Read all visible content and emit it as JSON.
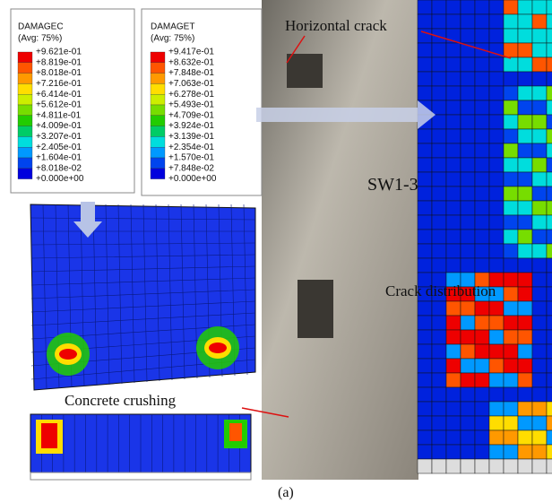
{
  "legend_c": {
    "title": "DAMAGEC",
    "subtitle": "(Avg: 75%)",
    "values": [
      "+9.621e-01",
      "+8.819e-01",
      "+8.018e-01",
      "+7.216e-01",
      "+6.414e-01",
      "+5.612e-01",
      "+4.811e-01",
      "+4.009e-01",
      "+3.207e-01",
      "+2.405e-01",
      "+1.604e-01",
      "+8.018e-02",
      "+0.000e+00"
    ]
  },
  "legend_t": {
    "title": "DAMAGET",
    "subtitle": "(Avg: 75%)",
    "values": [
      "+9.417e-01",
      "+8.632e-01",
      "+7.848e-01",
      "+7.063e-01",
      "+6.278e-01",
      "+5.493e-01",
      "+4.709e-01",
      "+3.924e-01",
      "+3.139e-01",
      "+2.354e-01",
      "+1.570e-01",
      "+7.848e-02",
      "+0.000e+00"
    ]
  },
  "annotations": {
    "horizontal_crack": "Horizontal crack",
    "specimen": "SW1-3",
    "crack_distribution": "Crack distribution",
    "concrete_crushing": "Concrete crushing"
  },
  "caption": "(a)"
}
